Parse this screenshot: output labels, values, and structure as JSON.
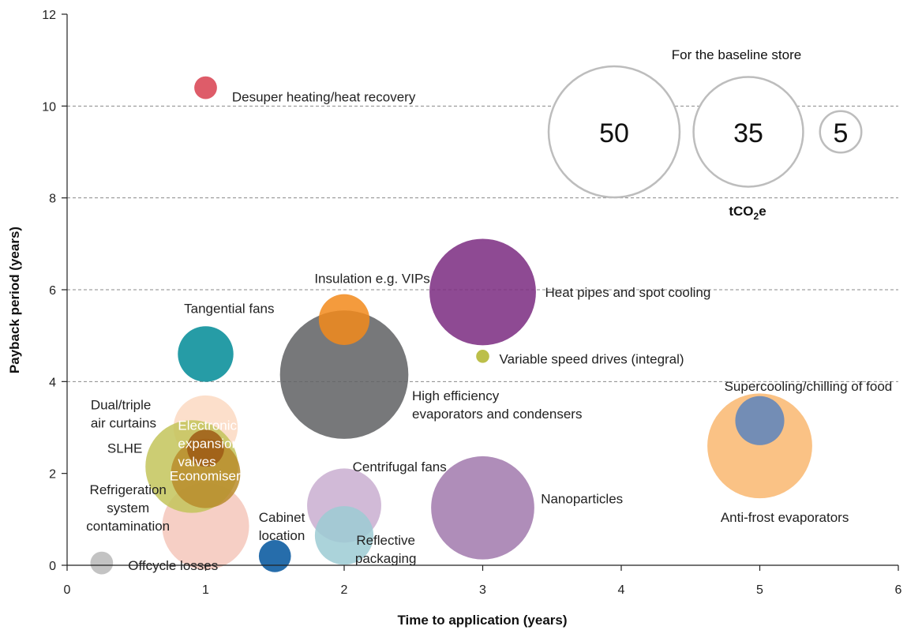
{
  "chart_data": {
    "type": "bubble",
    "xlabel": "Time to application (years)",
    "ylabel": "Payback period (years)",
    "xlim": [
      0,
      6
    ],
    "ylim": [
      0,
      12
    ],
    "xticks": [
      0,
      1,
      2,
      3,
      4,
      5,
      6
    ],
    "yticks": [
      0,
      2,
      4,
      6,
      8,
      10,
      12
    ],
    "dashed_gridlines_y": [
      4,
      6,
      8,
      10
    ],
    "size_legend": {
      "title": "For the baseline store",
      "unit_text": "tCO",
      "unit_sub": "2",
      "unit_suffix": "e",
      "sizes": [
        50,
        35,
        5
      ]
    },
    "bubbles": [
      {
        "name": "Anti-frost evaporators",
        "x": 5.0,
        "y": 2.6,
        "size": 32,
        "color": "#f9b770"
      },
      {
        "name": "Supercooling/chilling of food",
        "x": 5.0,
        "y": 3.15,
        "size": 7,
        "color": "#5b84bd"
      },
      {
        "name": "High efficiency evaporators and condensers",
        "x": 2.0,
        "y": 4.15,
        "size": 48,
        "color": "#5f6063"
      },
      {
        "name": "Insulation e.g. VIPs",
        "x": 2.0,
        "y": 5.35,
        "size": 7.5,
        "color": "#f28a1b"
      },
      {
        "name": "Heat pipes and spot cooling",
        "x": 3.0,
        "y": 5.95,
        "size": 33,
        "color": "#7a2a80"
      },
      {
        "name": "Variable speed drives (integral)",
        "x": 3.0,
        "y": 4.55,
        "size": 0.5,
        "color": "#b0b42a"
      },
      {
        "name": "Nanoparticles",
        "x": 3.0,
        "y": 1.25,
        "size": 31,
        "color": "#a179ad"
      },
      {
        "name": "Centrifugal fans",
        "x": 2.0,
        "y": 1.3,
        "size": 16,
        "color": "#c9aed0"
      },
      {
        "name": "Reflective packaging",
        "x": 2.0,
        "y": 0.65,
        "size": 10,
        "color": "#9ccbd4"
      },
      {
        "name": "Cabinet location",
        "x": 1.5,
        "y": 0.2,
        "size": 3,
        "color": "#00549c"
      },
      {
        "name": "Offcycle losses",
        "x": 0.25,
        "y": 0.05,
        "size": 1.5,
        "color": "#b9b9b9"
      },
      {
        "name": "Refrigeration system contamination",
        "x": 1.0,
        "y": 0.85,
        "size": 22,
        "color": "#f5c7bb"
      },
      {
        "name": "Dual/triple air curtains",
        "x": 1.0,
        "y": 3.0,
        "size": 12,
        "color": "#fcd9c2"
      },
      {
        "name": "Tangential fans",
        "x": 1.0,
        "y": 4.6,
        "size": 9,
        "color": "#008b96"
      },
      {
        "name": "Economisers",
        "x": 0.9,
        "y": 2.15,
        "size": 25,
        "color": "#c3c45a"
      },
      {
        "name": "SLHE",
        "x": 1.0,
        "y": 2.0,
        "size": 14,
        "color": "#b88c2c"
      },
      {
        "name": "Electronic expansion valves",
        "x": 1.0,
        "y": 2.55,
        "size": 4,
        "color": "#9d5b14"
      },
      {
        "name": "Desuper heating/heat recovery",
        "x": 1.0,
        "y": 10.4,
        "size": 1.5,
        "color": "#d8404f"
      }
    ]
  },
  "labels": [
    {
      "text": [
        "Desuper heating/heat recovery"
      ],
      "x": 1.19,
      "y": 10.2,
      "anchor": "start",
      "color": "dark"
    },
    {
      "text": [
        "Insulation e.g. VIPs"
      ],
      "x": 2.62,
      "y": 6.25,
      "anchor": "end",
      "color": "dark"
    },
    {
      "text": [
        "Heat pipes and spot cooling"
      ],
      "x": 3.45,
      "y": 5.95,
      "anchor": "start",
      "color": "dark"
    },
    {
      "text": [
        "Tangential fans"
      ],
      "x": 1.17,
      "y": 5.6,
      "anchor": "middle",
      "color": "dark"
    },
    {
      "text": [
        "Variable speed drives (integral)"
      ],
      "x": 3.12,
      "y": 4.5,
      "anchor": "start",
      "color": "dark"
    },
    {
      "text": [
        "High efficiency",
        "evaporators and condensers"
      ],
      "x": 2.49,
      "y": 3.7,
      "anchor": "start",
      "color": "dark"
    },
    {
      "text": [
        "Supercooling/chilling of food"
      ],
      "x": 5.35,
      "y": 3.9,
      "anchor": "middle",
      "color": "dark"
    },
    {
      "text": [
        "Dual/triple",
        "air curtains"
      ],
      "x": 0.17,
      "y": 3.5,
      "anchor": "start",
      "color": "dark"
    },
    {
      "text": [
        "SLHE"
      ],
      "x": 0.29,
      "y": 2.55,
      "anchor": "start",
      "color": "dark"
    },
    {
      "text": [
        "Electronic",
        "expansion",
        "valves"
      ],
      "x": 0.8,
      "y": 3.05,
      "anchor": "start",
      "color": "light"
    },
    {
      "text": [
        "Economisers"
      ],
      "x": 0.74,
      "y": 1.95,
      "anchor": "start",
      "color": "light"
    },
    {
      "text": [
        "Centrifugal fans"
      ],
      "x": 2.4,
      "y": 2.15,
      "anchor": "middle",
      "color": "dark"
    },
    {
      "text": [
        "Nanoparticles"
      ],
      "x": 3.42,
      "y": 1.45,
      "anchor": "start",
      "color": "dark"
    },
    {
      "text": [
        "Refrigeration",
        "system",
        "contamination"
      ],
      "x": 0.44,
      "y": 1.65,
      "anchor": "middle",
      "color": "dark"
    },
    {
      "text": [
        "Cabinet",
        "location"
      ],
      "x": 1.55,
      "y": 1.05,
      "anchor": "middle",
      "color": "dark"
    },
    {
      "text": [
        "Reflective",
        "packaging"
      ],
      "x": 2.3,
      "y": 0.55,
      "anchor": "middle",
      "color": "dark"
    },
    {
      "text": [
        "Offcycle losses"
      ],
      "x": 0.44,
      "y": 0.0,
      "anchor": "start",
      "color": "dark"
    },
    {
      "text": [
        "Anti-frost evaporators"
      ],
      "x": 5.18,
      "y": 1.05,
      "anchor": "middle",
      "color": "dark"
    }
  ]
}
